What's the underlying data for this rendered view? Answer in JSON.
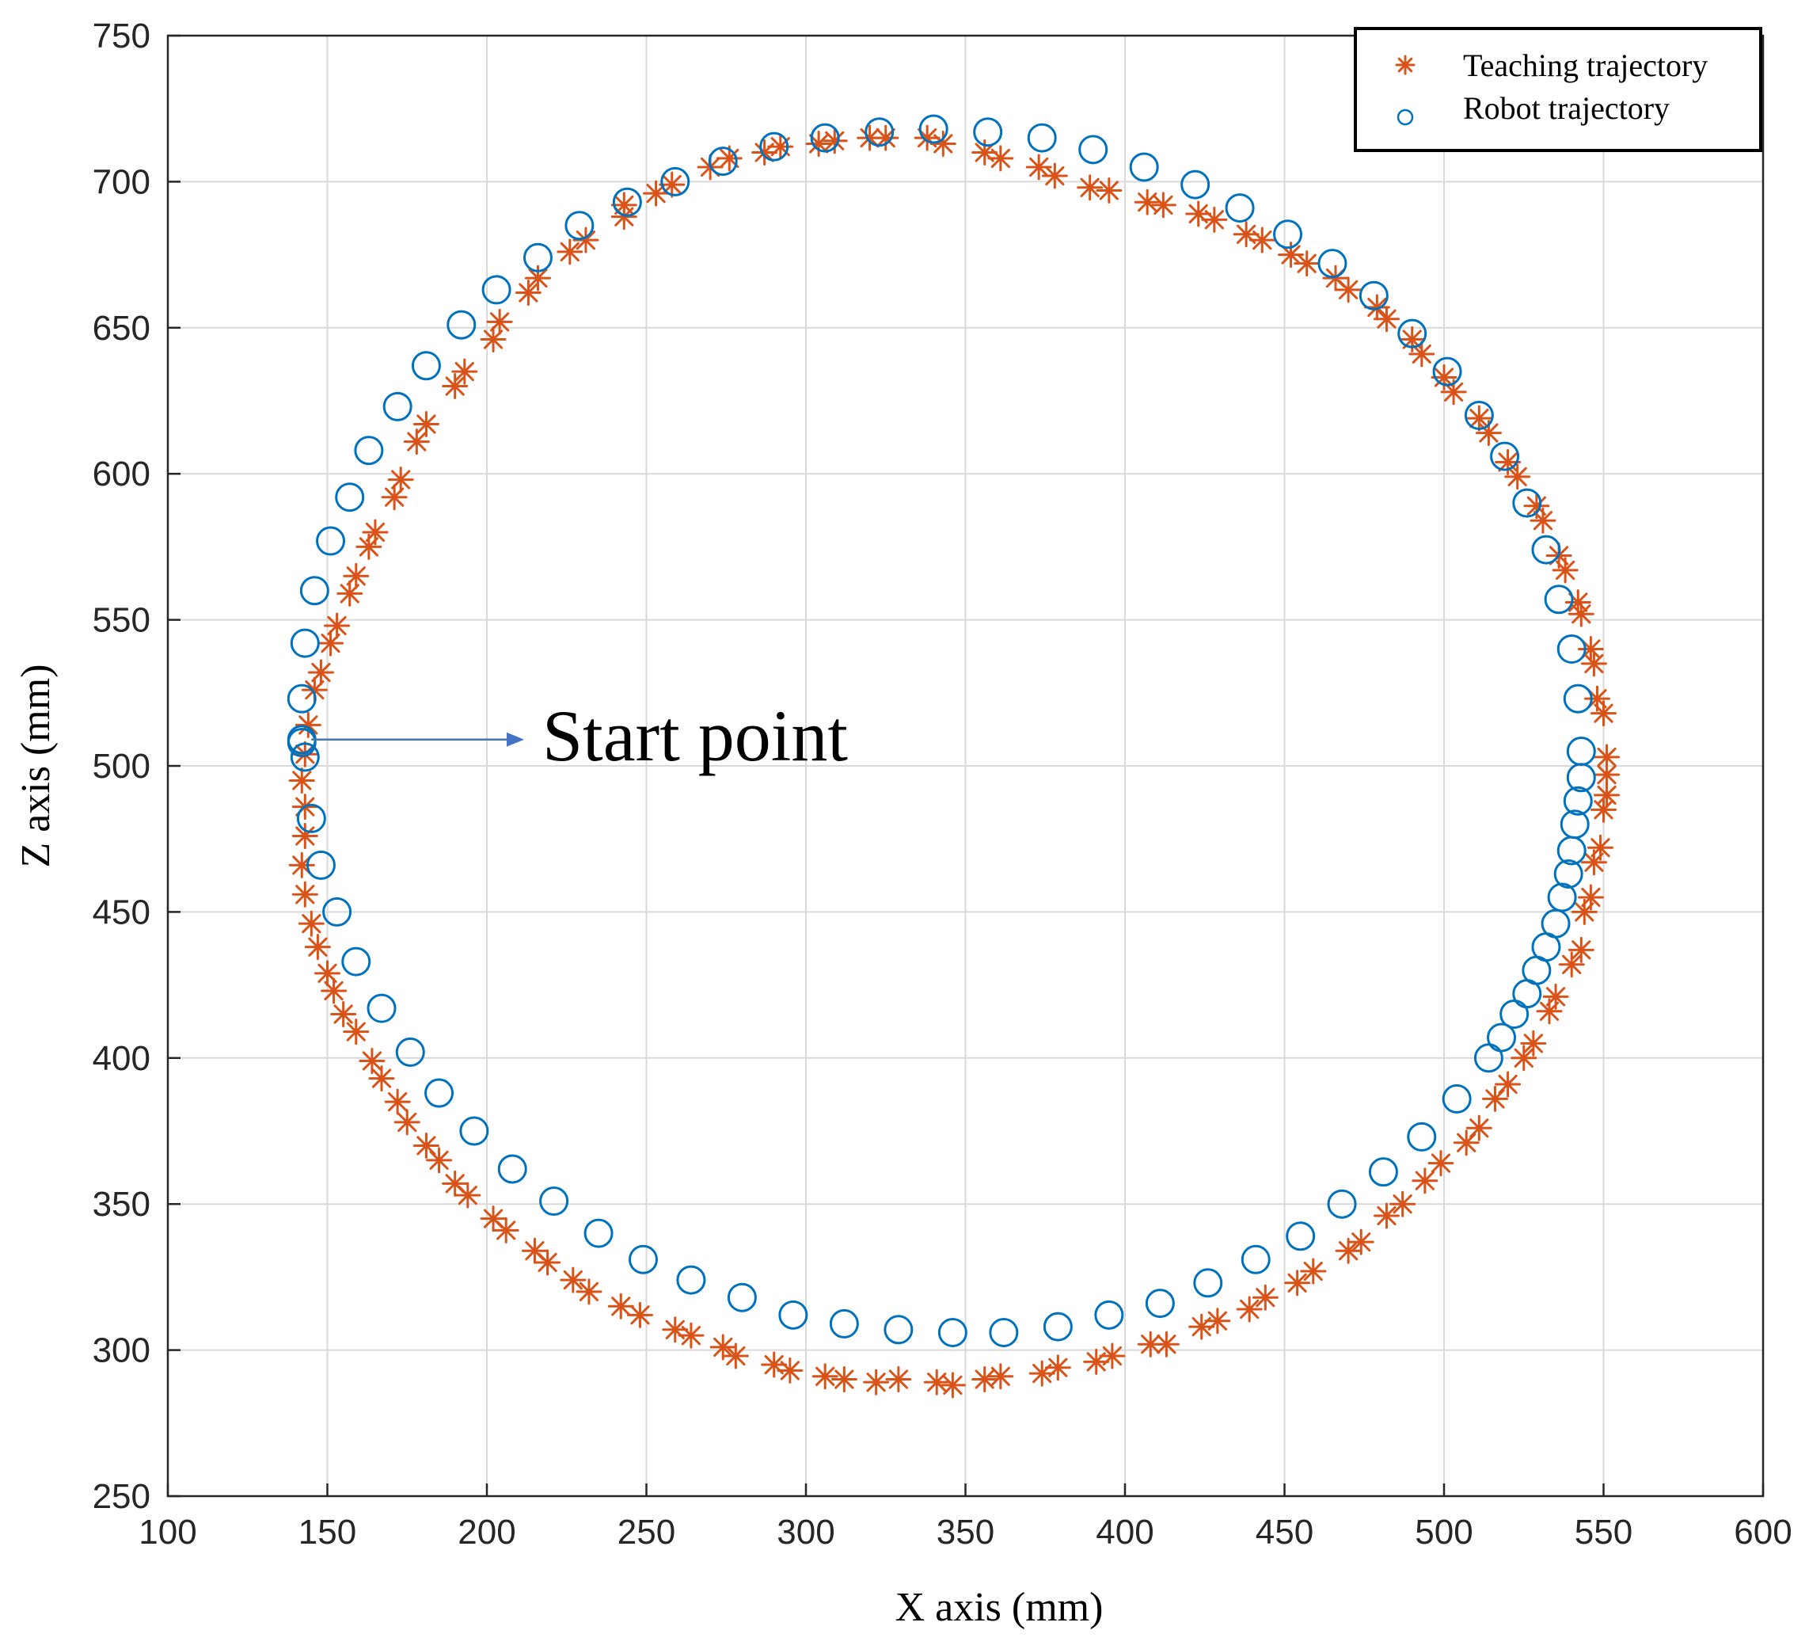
{
  "chart_data": {
    "type": "scatter",
    "xlabel": "X axis (mm)",
    "ylabel": "Z axis (mm)",
    "xlim": [
      100,
      600
    ],
    "ylim": [
      250,
      750
    ],
    "xticks": [
      100,
      150,
      200,
      250,
      300,
      350,
      400,
      450,
      500,
      550,
      600
    ],
    "yticks": [
      250,
      300,
      350,
      400,
      450,
      500,
      550,
      600,
      650,
      700,
      750
    ],
    "grid": true,
    "legend_position": "top-right",
    "annotation": {
      "text": "Start point",
      "x": 142,
      "y": 509
    },
    "series": [
      {
        "name": "Teaching trajectory",
        "marker": "asterisk",
        "color": "#d95319",
        "points": [
          [
            144,
            514
          ],
          [
            143,
            504
          ],
          [
            142,
            495
          ],
          [
            143,
            486
          ],
          [
            143,
            476
          ],
          [
            142,
            466
          ],
          [
            143,
            456
          ],
          [
            145,
            446
          ],
          [
            147,
            438
          ],
          [
            150,
            429
          ],
          [
            152,
            423
          ],
          [
            155,
            415
          ],
          [
            159,
            409
          ],
          [
            164,
            399
          ],
          [
            167,
            393
          ],
          [
            172,
            385
          ],
          [
            175,
            378
          ],
          [
            181,
            370
          ],
          [
            185,
            365
          ],
          [
            190,
            357
          ],
          [
            194,
            353
          ],
          [
            202,
            345
          ],
          [
            206,
            341
          ],
          [
            215,
            334
          ],
          [
            219,
            330
          ],
          [
            227,
            324
          ],
          [
            232,
            320
          ],
          [
            242,
            315
          ],
          [
            248,
            312
          ],
          [
            259,
            307
          ],
          [
            264,
            305
          ],
          [
            274,
            301
          ],
          [
            278,
            298
          ],
          [
            290,
            295
          ],
          [
            295,
            293
          ],
          [
            306,
            291
          ],
          [
            312,
            290
          ],
          [
            322,
            289
          ],
          [
            329,
            290
          ],
          [
            341,
            289
          ],
          [
            346,
            288
          ],
          [
            356,
            290
          ],
          [
            361,
            291
          ],
          [
            374,
            292
          ],
          [
            379,
            294
          ],
          [
            391,
            296
          ],
          [
            396,
            298
          ],
          [
            408,
            302
          ],
          [
            413,
            302
          ],
          [
            424,
            308
          ],
          [
            429,
            310
          ],
          [
            439,
            314
          ],
          [
            444,
            318
          ],
          [
            454,
            323
          ],
          [
            459,
            327
          ],
          [
            470,
            334
          ],
          [
            474,
            337
          ],
          [
            482,
            346
          ],
          [
            487,
            350
          ],
          [
            494,
            358
          ],
          [
            499,
            364
          ],
          [
            507,
            371
          ],
          [
            511,
            376
          ],
          [
            516,
            386
          ],
          [
            520,
            391
          ],
          [
            525,
            400
          ],
          [
            528,
            405
          ],
          [
            533,
            416
          ],
          [
            535,
            421
          ],
          [
            540,
            432
          ],
          [
            543,
            437
          ],
          [
            544,
            450
          ],
          [
            546,
            455
          ],
          [
            547,
            467
          ],
          [
            549,
            472
          ],
          [
            550,
            485
          ],
          [
            551,
            490
          ],
          [
            551,
            497
          ],
          [
            551,
            503
          ],
          [
            550,
            518
          ],
          [
            548,
            523
          ],
          [
            547,
            535
          ],
          [
            546,
            540
          ],
          [
            543,
            552
          ],
          [
            542,
            556
          ],
          [
            538,
            567
          ],
          [
            536,
            572
          ],
          [
            531,
            584
          ],
          [
            529,
            589
          ],
          [
            523,
            599
          ],
          [
            520,
            604
          ],
          [
            514,
            614
          ],
          [
            511,
            619
          ],
          [
            503,
            628
          ],
          [
            500,
            633
          ],
          [
            493,
            641
          ],
          [
            490,
            646
          ],
          [
            482,
            653
          ],
          [
            479,
            657
          ],
          [
            470,
            663
          ],
          [
            466,
            667
          ],
          [
            457,
            672
          ],
          [
            452,
            675
          ],
          [
            443,
            680
          ],
          [
            438,
            682
          ],
          [
            428,
            687
          ],
          [
            423,
            689
          ],
          [
            412,
            692
          ],
          [
            407,
            693
          ],
          [
            395,
            697
          ],
          [
            389,
            698
          ],
          [
            378,
            702
          ],
          [
            373,
            705
          ],
          [
            361,
            708
          ],
          [
            356,
            710
          ],
          [
            343,
            713
          ],
          [
            338,
            715
          ],
          [
            325,
            715
          ],
          [
            320,
            715
          ],
          [
            309,
            714
          ],
          [
            304,
            713
          ],
          [
            292,
            712
          ],
          [
            287,
            710
          ],
          [
            276,
            708
          ],
          [
            270,
            705
          ],
          [
            258,
            699
          ],
          [
            253,
            696
          ],
          [
            243,
            688
          ],
          [
            243,
            692
          ],
          [
            231,
            680
          ],
          [
            226,
            676
          ],
          [
            216,
            667
          ],
          [
            213,
            662
          ],
          [
            204,
            652
          ],
          [
            202,
            646
          ],
          [
            193,
            635
          ],
          [
            190,
            630
          ],
          [
            181,
            617
          ],
          [
            178,
            611
          ],
          [
            173,
            598
          ],
          [
            171,
            592
          ],
          [
            165,
            580
          ],
          [
            163,
            575
          ],
          [
            159,
            565
          ],
          [
            157,
            559
          ],
          [
            153,
            548
          ],
          [
            151,
            542
          ],
          [
            148,
            532
          ],
          [
            146,
            526
          ]
        ]
      },
      {
        "name": "Robot trajectory",
        "marker": "circle",
        "color": "#0072bd",
        "points": [
          [
            142,
            509
          ],
          [
            142,
            508
          ],
          [
            143,
            503
          ],
          [
            142,
            523
          ],
          [
            143,
            542
          ],
          [
            146,
            560
          ],
          [
            151,
            577
          ],
          [
            157,
            592
          ],
          [
            163,
            608
          ],
          [
            172,
            623
          ],
          [
            181,
            637
          ],
          [
            192,
            651
          ],
          [
            203,
            663
          ],
          [
            216,
            674
          ],
          [
            229,
            685
          ],
          [
            244,
            693
          ],
          [
            259,
            700
          ],
          [
            274,
            707
          ],
          [
            290,
            712
          ],
          [
            306,
            715
          ],
          [
            323,
            717
          ],
          [
            340,
            718
          ],
          [
            357,
            717
          ],
          [
            374,
            715
          ],
          [
            390,
            711
          ],
          [
            406,
            705
          ],
          [
            422,
            699
          ],
          [
            436,
            691
          ],
          [
            451,
            682
          ],
          [
            465,
            672
          ],
          [
            478,
            661
          ],
          [
            490,
            648
          ],
          [
            501,
            635
          ],
          [
            511,
            620
          ],
          [
            519,
            606
          ],
          [
            526,
            590
          ],
          [
            532,
            574
          ],
          [
            536,
            557
          ],
          [
            540,
            540
          ],
          [
            542,
            523
          ],
          [
            543,
            505
          ],
          [
            543,
            496
          ],
          [
            542,
            488
          ],
          [
            541,
            480
          ],
          [
            540,
            471
          ],
          [
            539,
            463
          ],
          [
            537,
            455
          ],
          [
            535,
            446
          ],
          [
            532,
            438
          ],
          [
            529,
            430
          ],
          [
            526,
            422
          ],
          [
            522,
            415
          ],
          [
            518,
            407
          ],
          [
            514,
            400
          ],
          [
            504,
            386
          ],
          [
            493,
            373
          ],
          [
            481,
            361
          ],
          [
            468,
            350
          ],
          [
            455,
            339
          ],
          [
            441,
            331
          ],
          [
            426,
            323
          ],
          [
            411,
            316
          ],
          [
            395,
            312
          ],
          [
            379,
            308
          ],
          [
            362,
            306
          ],
          [
            346,
            306
          ],
          [
            329,
            307
          ],
          [
            312,
            309
          ],
          [
            296,
            312
          ],
          [
            280,
            318
          ],
          [
            264,
            324
          ],
          [
            249,
            331
          ],
          [
            235,
            340
          ],
          [
            221,
            351
          ],
          [
            208,
            362
          ],
          [
            196,
            375
          ],
          [
            185,
            388
          ],
          [
            176,
            402
          ],
          [
            167,
            417
          ],
          [
            159,
            433
          ],
          [
            153,
            450
          ],
          [
            148,
            466
          ],
          [
            145,
            482
          ]
        ]
      }
    ]
  }
}
